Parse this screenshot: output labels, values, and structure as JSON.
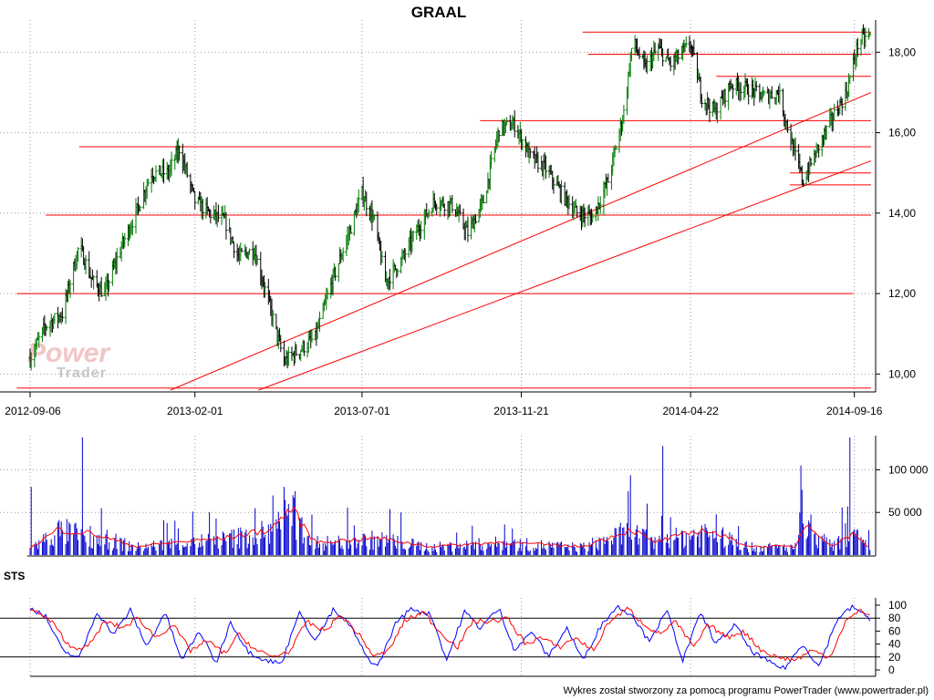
{
  "chart_data": [
    {
      "type": "ohlc",
      "title": "GRAAL",
      "x_tick_labels": [
        "2012-09-06",
        "2013-02-01",
        "2013-07-01",
        "2013-11-21",
        "2014-04-22",
        "2014-09-16"
      ],
      "y_tick_labels": [
        "10,00",
        "12,00",
        "14,00",
        "16,00",
        "18,00"
      ],
      "ylim": [
        9.6,
        18.8
      ],
      "xlim": [
        "2012-09-06",
        "2014-10-01"
      ],
      "grid": true,
      "price_path": [
        [
          "2012-09-06",
          10.4
        ],
        [
          "2012-09-20",
          11.2
        ],
        [
          "2012-10-05",
          11.5
        ],
        [
          "2012-10-20",
          13.2
        ],
        [
          "2012-11-01",
          12.3
        ],
        [
          "2012-11-12",
          12.0
        ],
        [
          "2012-11-26",
          13.1
        ],
        [
          "2012-12-10",
          14.0
        ],
        [
          "2012-12-24",
          15.0
        ],
        [
          "2013-01-08",
          15.0
        ],
        [
          "2013-01-18",
          15.6
        ],
        [
          "2013-02-01",
          14.3
        ],
        [
          "2013-02-14",
          14.0
        ],
        [
          "2013-02-28",
          13.8
        ],
        [
          "2013-03-12",
          12.9
        ],
        [
          "2013-03-26",
          13.1
        ],
        [
          "2013-04-08",
          11.8
        ],
        [
          "2013-04-22",
          10.3
        ],
        [
          "2013-05-06",
          10.6
        ],
        [
          "2013-05-20",
          10.9
        ],
        [
          "2013-06-04",
          12.3
        ],
        [
          "2013-06-18",
          13.4
        ],
        [
          "2013-07-01",
          14.5
        ],
        [
          "2013-07-12",
          13.8
        ],
        [
          "2013-07-22",
          12.3
        ],
        [
          "2013-08-05",
          12.8
        ],
        [
          "2013-08-20",
          13.6
        ],
        [
          "2013-09-04",
          14.3
        ],
        [
          "2013-09-20",
          14.2
        ],
        [
          "2013-10-04",
          13.5
        ],
        [
          "2013-10-18",
          14.3
        ],
        [
          "2013-11-01",
          16.1
        ],
        [
          "2013-11-15",
          16.2
        ],
        [
          "2013-11-29",
          15.4
        ],
        [
          "2013-12-13",
          15.1
        ],
        [
          "2013-12-27",
          14.5
        ],
        [
          "2014-01-10",
          14.0
        ],
        [
          "2014-01-24",
          13.9
        ],
        [
          "2014-02-07",
          14.8
        ],
        [
          "2014-02-21",
          16.5
        ],
        [
          "2014-03-01",
          18.3
        ],
        [
          "2014-03-12",
          17.6
        ],
        [
          "2014-03-24",
          18.1
        ],
        [
          "2014-04-04",
          17.7
        ],
        [
          "2014-04-15",
          18.0
        ],
        [
          "2014-04-22",
          18.2
        ],
        [
          "2014-05-02",
          16.9
        ],
        [
          "2014-05-14",
          16.5
        ],
        [
          "2014-05-28",
          17.2
        ],
        [
          "2014-06-12",
          17.1
        ],
        [
          "2014-06-26",
          16.9
        ],
        [
          "2014-07-10",
          17.0
        ],
        [
          "2014-07-24",
          15.5
        ],
        [
          "2014-08-01",
          14.8
        ],
        [
          "2014-08-14",
          15.6
        ],
        [
          "2014-08-28",
          16.4
        ],
        [
          "2014-09-09",
          17.0
        ],
        [
          "2014-09-20",
          18.3
        ],
        [
          "2014-09-30",
          18.4
        ]
      ],
      "trend_lines": [
        {
          "from": [
            "2013-01-10",
            9.6
          ],
          "to": [
            "2014-10-01",
            17.0
          ]
        },
        {
          "from": [
            "2013-03-30",
            9.6
          ],
          "to": [
            "2014-10-01",
            15.3
          ]
        }
      ],
      "horizontal_levels": [
        {
          "y": 18.5,
          "from": "2014-01-15",
          "to": "2014-10-01"
        },
        {
          "y": 17.95,
          "from": "2014-01-20",
          "to": "2014-10-01"
        },
        {
          "y": 17.4,
          "from": "2014-05-15",
          "to": "2014-10-01"
        },
        {
          "y": 16.3,
          "from": "2013-10-15",
          "to": "2014-10-01"
        },
        {
          "y": 15.65,
          "from": "2012-10-20",
          "to": "2014-10-01"
        },
        {
          "y": 15.0,
          "from": "2014-07-20",
          "to": "2014-10-01"
        },
        {
          "y": 14.7,
          "from": "2014-07-20",
          "to": "2014-10-01"
        },
        {
          "y": 13.95,
          "from": "2012-09-20",
          "to": "2014-10-01"
        },
        {
          "y": 12.0,
          "from": "2012-08-25",
          "to": "2014-09-15"
        },
        {
          "y": 9.65,
          "from": "2012-08-25",
          "to": "2014-10-01"
        }
      ]
    },
    {
      "type": "bar",
      "y_tick_labels": [
        "50 000",
        "100 000"
      ],
      "ylim": [
        0,
        140000
      ],
      "grid": true,
      "spikes": [
        [
          "2012-09-07",
          80000
        ],
        [
          "2012-10-23",
          138000
        ],
        [
          "2012-11-09",
          55000
        ],
        [
          "2013-04-12",
          70000
        ],
        [
          "2013-04-22",
          80000
        ],
        [
          "2013-05-02",
          75000
        ],
        [
          "2013-08-05",
          50000
        ],
        [
          "2013-11-10",
          40000
        ],
        [
          "2014-02-25",
          75000
        ],
        [
          "2014-03-28",
          128000
        ],
        [
          "2014-05-18",
          85000
        ],
        [
          "2014-07-30",
          105000
        ],
        [
          "2014-08-02",
          55000
        ],
        [
          "2014-09-12",
          138000
        ],
        [
          "2014-09-20",
          45000
        ]
      ],
      "moving_average": [
        [
          "2012-09-06",
          8000
        ],
        [
          "2012-10-01",
          30000
        ],
        [
          "2012-11-01",
          25000
        ],
        [
          "2012-12-10",
          10000
        ],
        [
          "2013-01-15",
          15000
        ],
        [
          "2013-03-01",
          20000
        ],
        [
          "2013-04-10",
          30000
        ],
        [
          "2013-04-28",
          55000
        ],
        [
          "2013-05-20",
          15000
        ],
        [
          "2013-07-15",
          20000
        ],
        [
          "2013-09-01",
          10000
        ],
        [
          "2013-11-01",
          15000
        ],
        [
          "2014-01-15",
          10000
        ],
        [
          "2014-02-28",
          30000
        ],
        [
          "2014-03-20",
          15000
        ],
        [
          "2014-05-05",
          30000
        ],
        [
          "2014-06-15",
          10000
        ],
        [
          "2014-07-25",
          10000
        ],
        [
          "2014-08-05",
          40000
        ],
        [
          "2014-08-25",
          10000
        ],
        [
          "2014-09-15",
          25000
        ],
        [
          "2014-09-30",
          8000
        ]
      ]
    },
    {
      "type": "line",
      "title": "STS",
      "y_tick_labels": [
        "0",
        "20",
        "40",
        "60",
        "80",
        "100"
      ],
      "ylim": [
        0,
        100
      ],
      "reference_levels": [
        20,
        80
      ],
      "series": [
        {
          "color": "#0000ff",
          "values": [
            [
              "2012-09-06",
              97
            ],
            [
              "2012-09-20",
              82
            ],
            [
              "2012-10-05",
              30
            ],
            [
              "2012-10-20",
              18
            ],
            [
              "2012-11-05",
              90
            ],
            [
              "2012-11-20",
              55
            ],
            [
              "2012-12-05",
              92
            ],
            [
              "2012-12-20",
              35
            ],
            [
              "2013-01-05",
              90
            ],
            [
              "2013-01-20",
              15
            ],
            [
              "2013-02-05",
              60
            ],
            [
              "2013-02-20",
              10
            ],
            [
              "2013-03-05",
              75
            ],
            [
              "2013-03-20",
              30
            ],
            [
              "2013-04-05",
              15
            ],
            [
              "2013-04-20",
              10
            ],
            [
              "2013-05-05",
              90
            ],
            [
              "2013-05-20",
              45
            ],
            [
              "2013-06-05",
              92
            ],
            [
              "2013-06-20",
              70
            ],
            [
              "2013-07-05",
              20
            ],
            [
              "2013-07-15",
              5
            ],
            [
              "2013-08-01",
              75
            ],
            [
              "2013-08-15",
              95
            ],
            [
              "2013-09-01",
              85
            ],
            [
              "2013-09-15",
              15
            ],
            [
              "2013-10-01",
              90
            ],
            [
              "2013-10-15",
              65
            ],
            [
              "2013-11-01",
              95
            ],
            [
              "2013-11-15",
              30
            ],
            [
              "2013-12-01",
              60
            ],
            [
              "2013-12-15",
              20
            ],
            [
              "2014-01-01",
              65
            ],
            [
              "2014-01-15",
              15
            ],
            [
              "2014-02-01",
              70
            ],
            [
              "2014-02-15",
              98
            ],
            [
              "2014-03-01",
              85
            ],
            [
              "2014-03-15",
              45
            ],
            [
              "2014-04-01",
              90
            ],
            [
              "2014-04-15",
              15
            ],
            [
              "2014-05-01",
              88
            ],
            [
              "2014-05-15",
              40
            ],
            [
              "2014-06-01",
              70
            ],
            [
              "2014-06-15",
              30
            ],
            [
              "2014-07-01",
              12
            ],
            [
              "2014-07-15",
              2
            ],
            [
              "2014-08-01",
              40
            ],
            [
              "2014-08-15",
              5
            ],
            [
              "2014-09-01",
              80
            ],
            [
              "2014-09-15",
              98
            ],
            [
              "2014-09-30",
              78
            ]
          ]
        },
        {
          "color": "#ff0000",
          "values": [
            [
              "2012-09-06",
              95
            ],
            [
              "2012-09-25",
              75
            ],
            [
              "2012-10-12",
              35
            ],
            [
              "2012-10-28",
              35
            ],
            [
              "2012-11-12",
              75
            ],
            [
              "2012-11-28",
              65
            ],
            [
              "2012-12-12",
              80
            ],
            [
              "2012-12-28",
              50
            ],
            [
              "2013-01-12",
              70
            ],
            [
              "2013-01-28",
              30
            ],
            [
              "2013-02-12",
              45
            ],
            [
              "2013-02-28",
              25
            ],
            [
              "2013-03-12",
              55
            ],
            [
              "2013-03-28",
              30
            ],
            [
              "2013-04-12",
              20
            ],
            [
              "2013-04-28",
              30
            ],
            [
              "2013-05-12",
              75
            ],
            [
              "2013-05-28",
              60
            ],
            [
              "2013-06-12",
              85
            ],
            [
              "2013-06-28",
              55
            ],
            [
              "2013-07-12",
              20
            ],
            [
              "2013-07-25",
              30
            ],
            [
              "2013-08-08",
              75
            ],
            [
              "2013-08-25",
              90
            ],
            [
              "2013-09-08",
              60
            ],
            [
              "2013-09-25",
              35
            ],
            [
              "2013-10-08",
              75
            ],
            [
              "2013-10-25",
              75
            ],
            [
              "2013-11-08",
              80
            ],
            [
              "2013-11-25",
              40
            ],
            [
              "2013-12-08",
              50
            ],
            [
              "2013-12-25",
              35
            ],
            [
              "2014-01-08",
              50
            ],
            [
              "2014-01-25",
              30
            ],
            [
              "2014-02-08",
              75
            ],
            [
              "2014-02-25",
              95
            ],
            [
              "2014-03-08",
              75
            ],
            [
              "2014-03-25",
              55
            ],
            [
              "2014-04-08",
              75
            ],
            [
              "2014-04-25",
              35
            ],
            [
              "2014-05-08",
              70
            ],
            [
              "2014-05-25",
              50
            ],
            [
              "2014-06-08",
              60
            ],
            [
              "2014-06-25",
              30
            ],
            [
              "2014-07-08",
              20
            ],
            [
              "2014-07-25",
              15
            ],
            [
              "2014-08-08",
              30
            ],
            [
              "2014-08-25",
              20
            ],
            [
              "2014-09-08",
              75
            ],
            [
              "2014-09-22",
              92
            ],
            [
              "2014-09-30",
              85
            ]
          ]
        }
      ]
    }
  ],
  "logo": {
    "word1": "Power",
    "word2": "Trader"
  },
  "footer": {
    "text": "Wykres został stworzony za pomocą programu PowerTrader (www.powertrader.pl)"
  },
  "colors": {
    "up": "#007a00",
    "down": "#000000",
    "lines": "#ff0000",
    "volume": "#0000cc",
    "sts_k": "#0000ff",
    "sts_d": "#ff0000"
  }
}
